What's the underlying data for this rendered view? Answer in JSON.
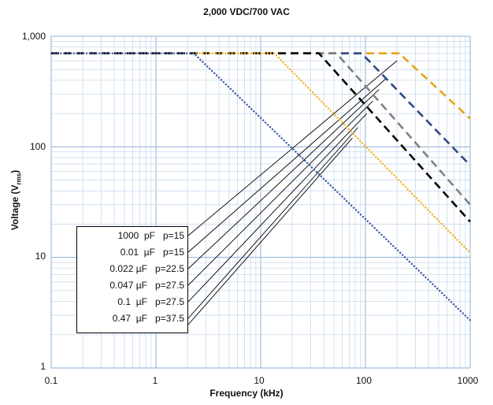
{
  "chart_data": {
    "type": "line",
    "title": "2,000 VDC/700 VAC",
    "xlabel": "Frequency (kHz)",
    "ylabel_main": "Voltage (V",
    "ylabel_sub": "rms",
    "ylabel_end": ")",
    "x_scale": "log",
    "y_scale": "log",
    "xlim": [
      0.1,
      1000
    ],
    "ylim": [
      1,
      1000
    ],
    "x_ticks": [
      "0.1",
      "1",
      "10",
      "100",
      "1000"
    ],
    "y_ticks": [
      "1",
      "10",
      "100",
      "1,000"
    ],
    "grid": true,
    "series": [
      {
        "label": "1000 pF  p=15",
        "color": "#E8A317",
        "style": "dashed",
        "points": [
          [
            0.1,
            700
          ],
          [
            210,
            700
          ],
          [
            1000,
            180
          ]
        ]
      },
      {
        "label": "0.01  µF  p=15",
        "color": "#2E4A87",
        "style": "dashed",
        "points": [
          [
            0.1,
            700
          ],
          [
            92,
            700
          ],
          [
            1000,
            68
          ]
        ]
      },
      {
        "label": "0.022 µF  p=22.5",
        "color": "#808080",
        "style": "dashed",
        "points": [
          [
            0.1,
            700
          ],
          [
            53,
            700
          ],
          [
            1000,
            30
          ]
        ]
      },
      {
        "label": "0.047 µF  p=27.5",
        "color": "#000000",
        "style": "dashed",
        "points": [
          [
            0.1,
            700
          ],
          [
            36,
            700
          ],
          [
            1000,
            21
          ]
        ]
      },
      {
        "label": "0.1  µF  p=27.5",
        "color": "#F2B31B",
        "style": "dotted",
        "points": [
          [
            0.1,
            700
          ],
          [
            13.5,
            700
          ],
          [
            1000,
            11
          ]
        ]
      },
      {
        "label": "0.47  µF  p=37.5",
        "color": "#3C5AA6",
        "style": "dotted",
        "points": [
          [
            0.1,
            700
          ],
          [
            2.3,
            700
          ],
          [
            1000,
            2.7
          ]
        ]
      }
    ],
    "legend_entries": [
      "1000  pF   p=15",
      "0.01  µF   p=15",
      "0.022 µF   p=22.5",
      "0.047 µF   p=27.5",
      "0.1  µF   p=27.5",
      "0.47  µF   p=37.5"
    ],
    "leader_targets": [
      [
        200,
        600
      ],
      [
        160,
        420
      ],
      [
        135,
        330
      ],
      [
        118,
        260
      ],
      [
        103,
        200
      ],
      [
        85,
        150
      ],
      [
        75,
        120
      ]
    ]
  }
}
